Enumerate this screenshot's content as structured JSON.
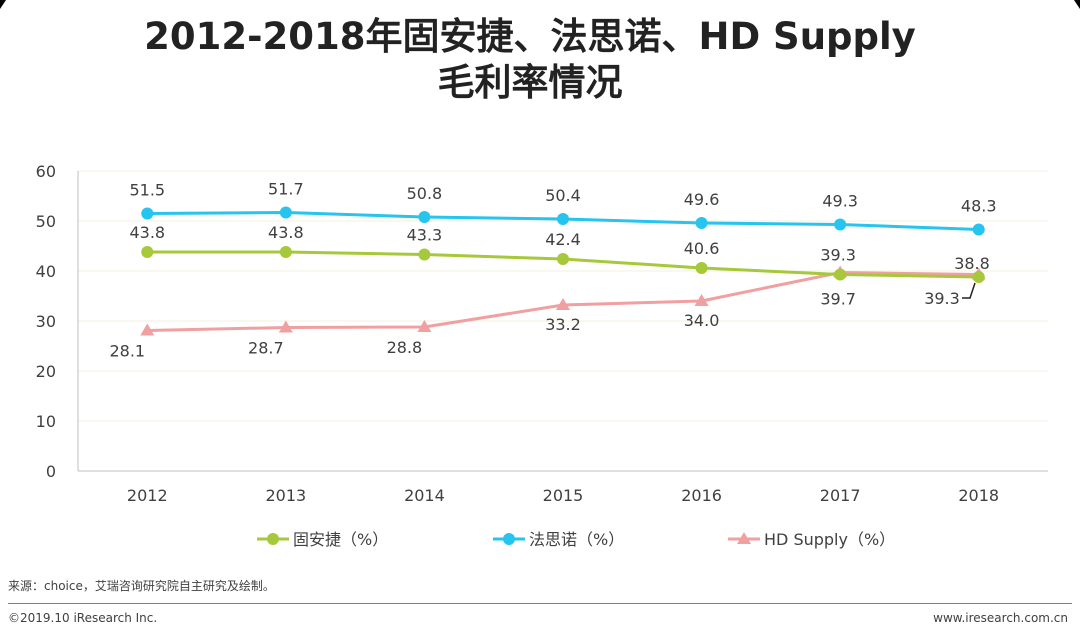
{
  "title": {
    "line1": "2012-2018年固安捷、法思诺、HD Supply",
    "line2": "毛利率情况"
  },
  "colors": {
    "green": "#a6c83b",
    "blue": "#26c4ee",
    "pink": "#f0a0a0",
    "axis": "#bfbfbf",
    "grid": "#f2f0dc",
    "label": "#404040"
  },
  "chart_data": {
    "type": "line",
    "categories": [
      "2012",
      "2013",
      "2014",
      "2015",
      "2016",
      "2017",
      "2018"
    ],
    "ylim": [
      0,
      60
    ],
    "yticks": [
      0,
      10,
      20,
      30,
      40,
      50,
      60
    ],
    "series": [
      {
        "name": "固安捷（%）",
        "marker": "circle",
        "color": "#a6c83b",
        "values": [
          43.8,
          43.8,
          43.3,
          42.4,
          40.6,
          39.3,
          38.8
        ]
      },
      {
        "name": "法思诺（%）",
        "marker": "circle",
        "color": "#26c4ee",
        "values": [
          51.5,
          51.7,
          50.8,
          50.4,
          49.6,
          49.3,
          48.3
        ]
      },
      {
        "name": "HD Supply（%）",
        "marker": "triangle",
        "color": "#f0a0a0",
        "values": [
          28.1,
          28.7,
          28.8,
          33.2,
          34.0,
          39.7,
          39.3
        ]
      }
    ],
    "legend_position": "bottom",
    "grid": true
  },
  "footer": {
    "source": "来源：choice，艾瑞咨询研究院自主研究及绘制。",
    "copyright": "©2019.10 iResearch Inc.",
    "website": "www.iresearch.com.cn"
  }
}
